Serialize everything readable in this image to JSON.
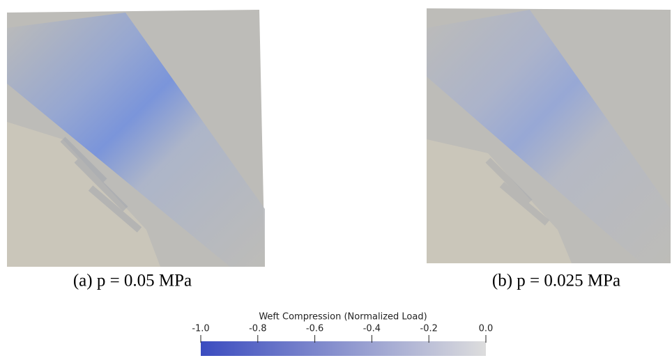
{
  "panels": [
    {
      "caption": "(a) p = 0.05 MPa"
    },
    {
      "caption": "(b) p = 0.025 MPa"
    }
  ],
  "colorbar": {
    "title": "Weft Compression (Normalized Load)",
    "lim": [
      -1,
      0
    ],
    "ticks": [
      {
        "value": -1,
        "label": "-1.0"
      },
      {
        "value": -0.8,
        "label": "-0.8"
      },
      {
        "value": -0.6,
        "label": "-0.6"
      },
      {
        "value": -0.4,
        "label": "-0.4"
      },
      {
        "value": -0.2,
        "label": "-0.2"
      },
      {
        "value": 0,
        "label": "0.0"
      }
    ],
    "colors": [
      "#3b4cc0",
      "#dddddd"
    ]
  }
}
